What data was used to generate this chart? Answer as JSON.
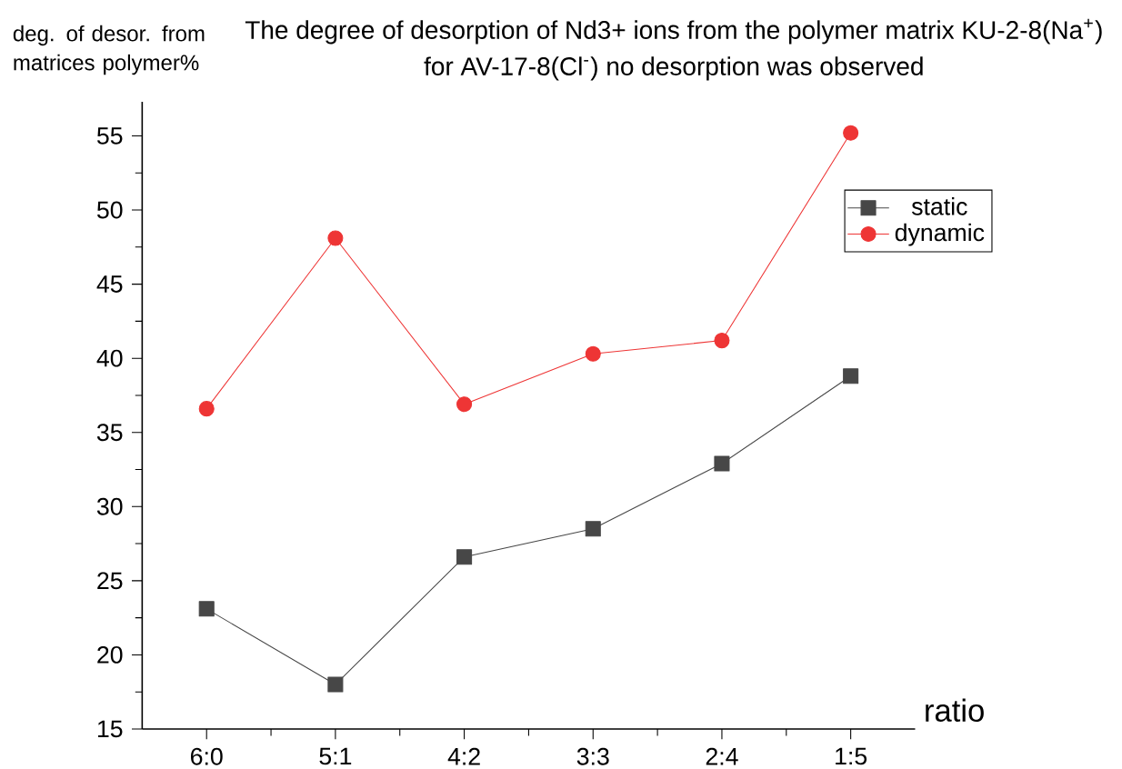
{
  "chart_data": {
    "type": "line",
    "title": "The degree of desorption of Nd3+ ions from the polymer matrix KU-2-8(Na$^{+}$)\nfor AV-17-8(Cl$^{-}$) no desorption was observed",
    "ylabel": "deg. of desor. from matrices polymer%",
    "xlabel": "ratio",
    "categories": [
      "6:0",
      "5:1",
      "4:2",
      "3:3",
      "2:4",
      "1:5"
    ],
    "series": [
      {
        "name": "static",
        "color": "#474747",
        "marker": "square",
        "values": [
          23.1,
          18.0,
          26.6,
          28.5,
          32.9,
          38.8
        ]
      },
      {
        "name": "dynamic",
        "color": "#ee3535",
        "marker": "circle",
        "values": [
          36.6,
          48.1,
          36.9,
          40.3,
          41.2,
          55.2
        ]
      }
    ],
    "ylim": [
      15,
      57.3
    ],
    "yticks": [
      15,
      20,
      25,
      30,
      35,
      40,
      45,
      50,
      55
    ],
    "grid": false,
    "legend": "top right",
    "line_style": "solid"
  }
}
